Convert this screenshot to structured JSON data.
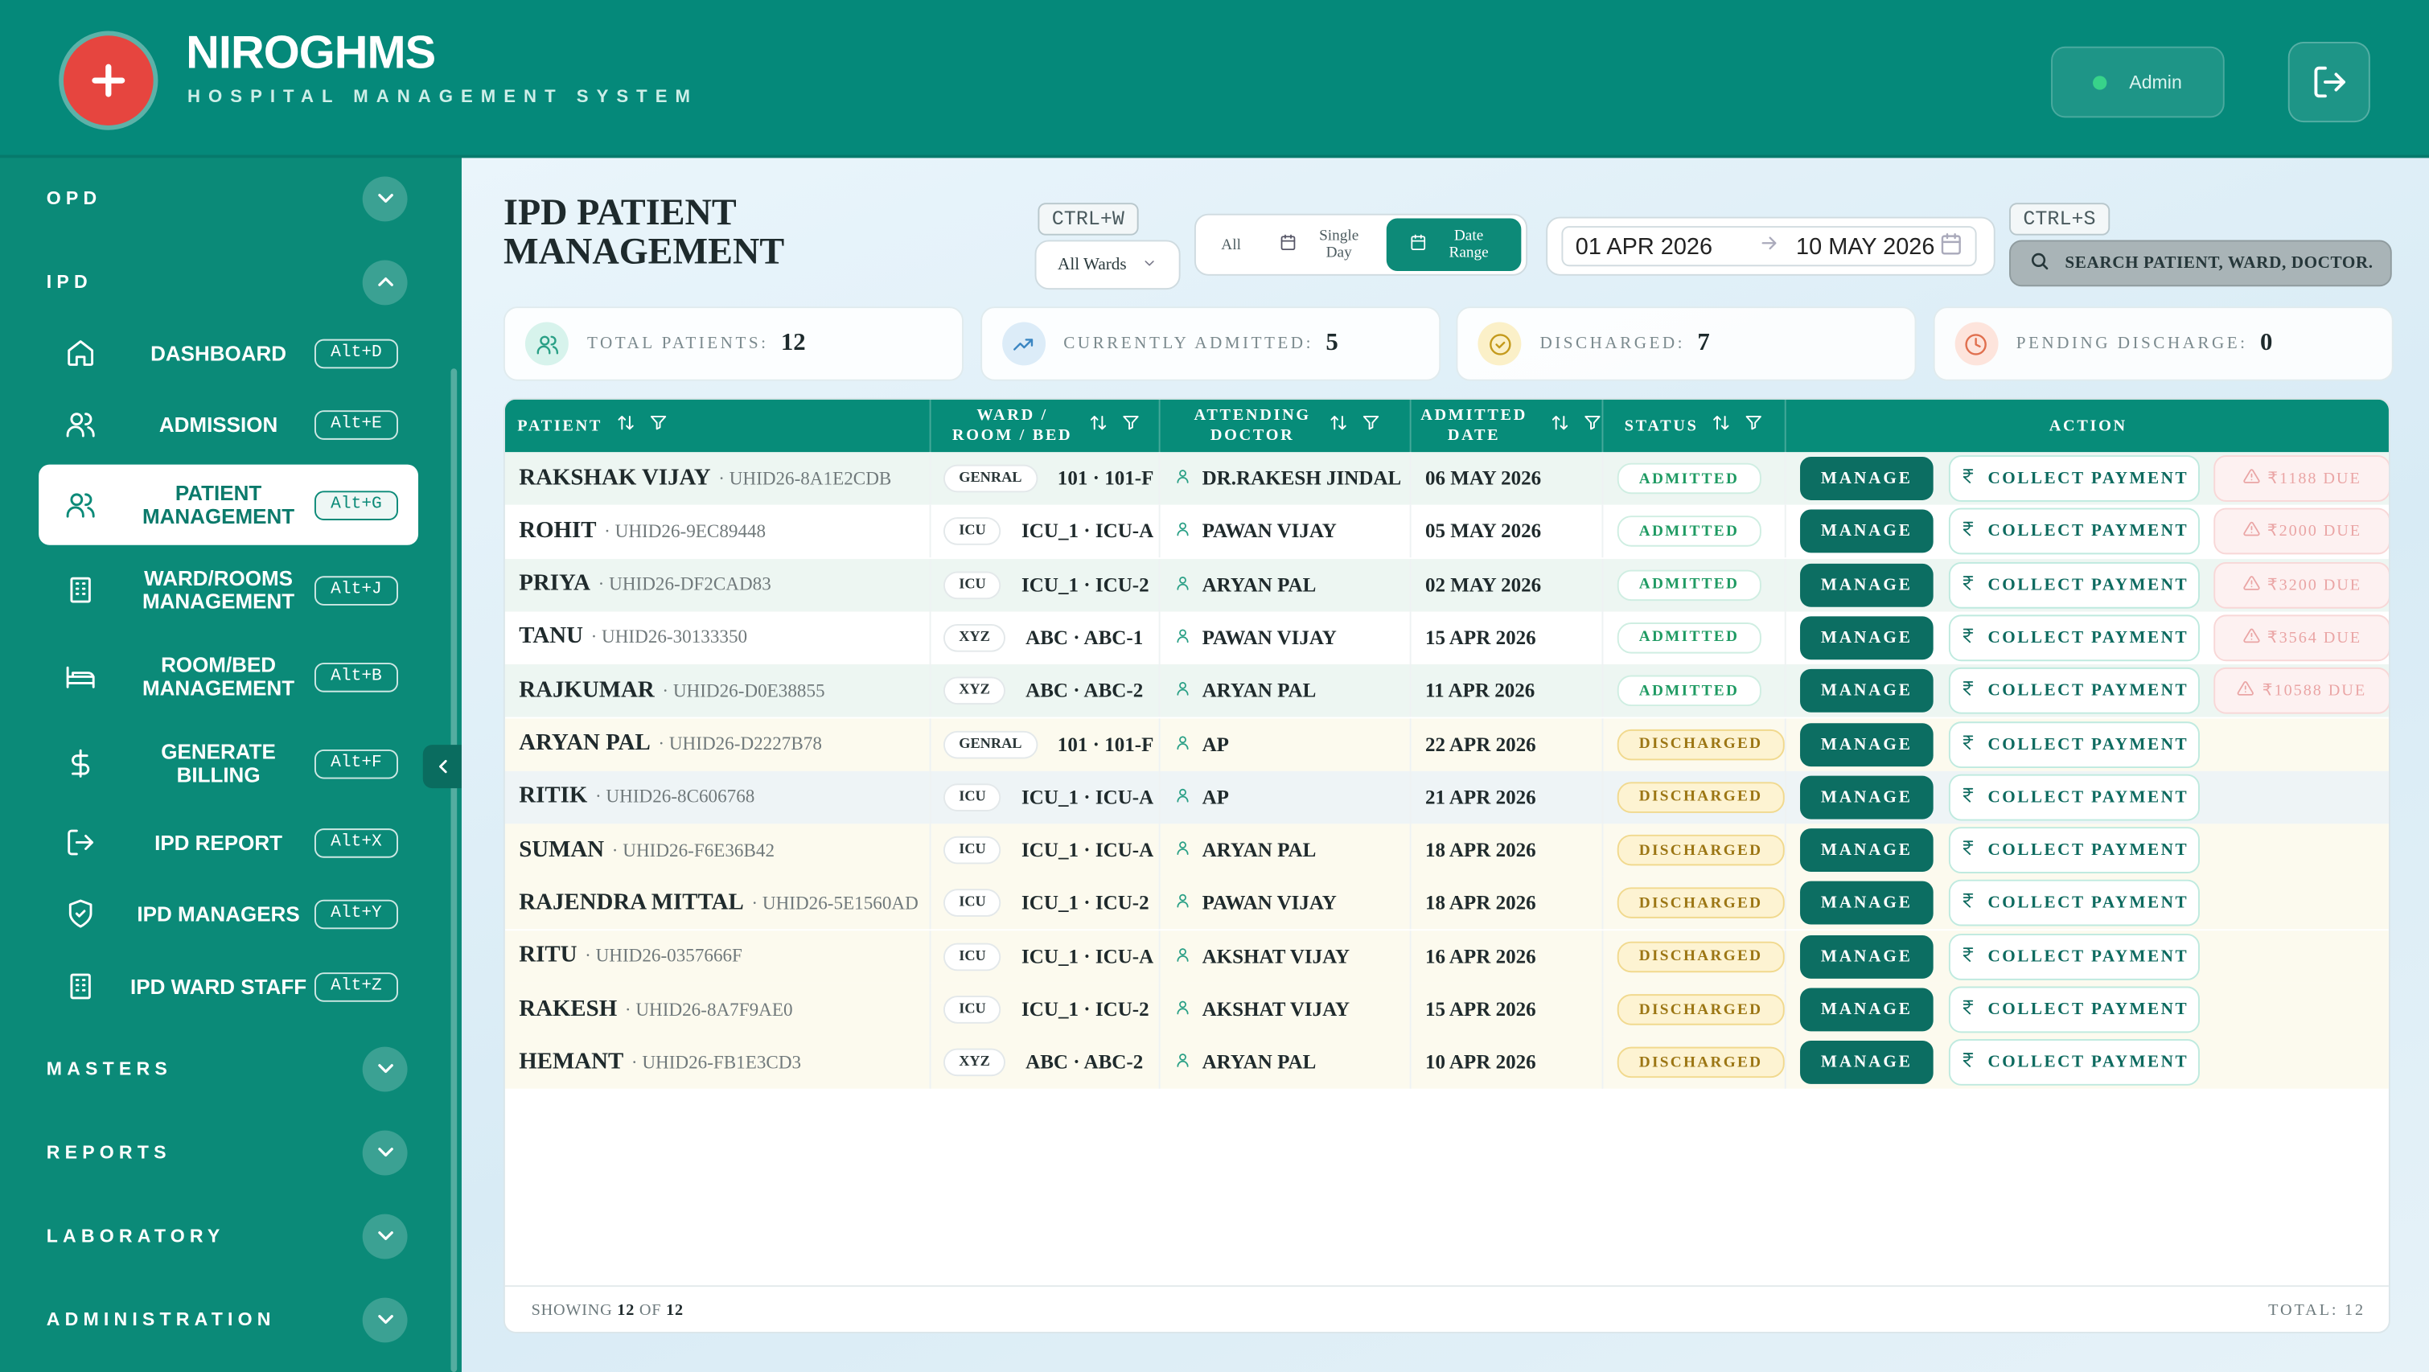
{
  "header": {
    "brand": "NIROGHMS",
    "tagline": "HOSPITAL MANAGEMENT SYSTEM",
    "user": "Admin"
  },
  "sidebar": {
    "sections": [
      {
        "label": "OPD"
      },
      {
        "label": "IPD",
        "expanded": true,
        "items": [
          {
            "label": "DASHBOARD",
            "shortcut": "Alt+D"
          },
          {
            "label": "ADMISSION",
            "shortcut": "Alt+E"
          },
          {
            "label": "PATIENT MANAGEMENT",
            "shortcut": "Alt+G",
            "selected": true
          },
          {
            "label": "WARD/ROOMS MANAGEMENT",
            "shortcut": "Alt+J"
          },
          {
            "label": "ROOM/BED MANAGEMENT",
            "shortcut": "Alt+B"
          },
          {
            "label": "GENERATE BILLING",
            "shortcut": "Alt+F"
          },
          {
            "label": "IPD REPORT",
            "shortcut": "Alt+X"
          },
          {
            "label": "IPD MANAGERS",
            "shortcut": "Alt+Y"
          },
          {
            "label": "IPD WARD STAFF",
            "shortcut": "Alt+Z"
          }
        ]
      },
      {
        "label": "MASTERS"
      },
      {
        "label": "REPORTS"
      },
      {
        "label": "LABORATORY"
      },
      {
        "label": "ADMINISTRATION"
      }
    ]
  },
  "page": {
    "title": "IPD PATIENT MANAGEMENT",
    "ward_shortcut": "CTRL+W",
    "ward_filter": "All Wards",
    "date_modes": [
      {
        "label": "All"
      },
      {
        "label": "Single Day"
      },
      {
        "label": "Date Range",
        "selected": true
      }
    ],
    "date_from": "01 APR 2026",
    "date_to": "10 MAY 2026",
    "search_shortcut": "CTRL+S",
    "search_placeholder": "SEARCH PATIENT, WARD, DOCTOR."
  },
  "stats": [
    {
      "label": "TOTAL PATIENTS:",
      "value": 12
    },
    {
      "label": "CURRENTLY ADMITTED:",
      "value": 5
    },
    {
      "label": "DISCHARGED:",
      "value": 7
    },
    {
      "label": "PENDING DISCHARGE:",
      "value": 0
    }
  ],
  "table": {
    "columns": [
      "PATIENT",
      "WARD / ROOM / BED",
      "ATTENDING DOCTOR",
      "ADMITTED DATE",
      "STATUS",
      "ACTION"
    ],
    "manage": "MANAGE",
    "collect": "COLLECT PAYMENT",
    "rows": [
      {
        "name": "RAKSHAK VIJAY",
        "uhid": "UHID26-8A1E2CDB",
        "ward": "GENRAL",
        "bed": "101 · 101-F",
        "doctor": "DR.RAKESH JINDAL",
        "date": "06 MAY 2026",
        "status": "ADMITTED",
        "due": "₹1188 DUE"
      },
      {
        "name": "ROHIT",
        "uhid": "UHID26-9EC89448",
        "ward": "ICU",
        "bed": "ICU_1 · ICU-A",
        "doctor": "PAWAN VIJAY",
        "date": "05 MAY 2026",
        "status": "ADMITTED",
        "due": "₹2000 DUE"
      },
      {
        "name": "PRIYA",
        "uhid": "UHID26-DF2CAD83",
        "ward": "ICU",
        "bed": "ICU_1 · ICU-2",
        "doctor": "ARYAN PAL",
        "date": "02 MAY 2026",
        "status": "ADMITTED",
        "due": "₹3200 DUE"
      },
      {
        "name": "TANU",
        "uhid": "UHID26-30133350",
        "ward": "XYZ",
        "bed": "ABC · ABC-1",
        "doctor": "PAWAN VIJAY",
        "date": "15 APR 2026",
        "status": "ADMITTED",
        "due": "₹3564 DUE"
      },
      {
        "name": "RAJKUMAR",
        "uhid": "UHID26-D0E38855",
        "ward": "XYZ",
        "bed": "ABC · ABC-2",
        "doctor": "ARYAN PAL",
        "date": "11 APR 2026",
        "status": "ADMITTED",
        "due": "₹10588 DUE"
      },
      {
        "name": "ARYAN PAL",
        "uhid": "UHID26-D2227B78",
        "ward": "GENRAL",
        "bed": "101 · 101-F",
        "doctor": "AP",
        "date": "22 APR 2026",
        "status": "DISCHARGED"
      },
      {
        "name": "RITIK",
        "uhid": "UHID26-8C606768",
        "ward": "ICU",
        "bed": "ICU_1 · ICU-A",
        "doctor": "AP",
        "date": "21 APR 2026",
        "status": "DISCHARGED"
      },
      {
        "name": "SUMAN",
        "uhid": "UHID26-F6E36B42",
        "ward": "ICU",
        "bed": "ICU_1 · ICU-A",
        "doctor": "ARYAN PAL",
        "date": "18 APR 2026",
        "status": "DISCHARGED"
      },
      {
        "name": "RAJENDRA MITTAL",
        "uhid": "UHID26-5E1560AD",
        "ward": "ICU",
        "bed": "ICU_1 · ICU-2",
        "doctor": "PAWAN VIJAY",
        "date": "18 APR 2026",
        "status": "DISCHARGED"
      },
      {
        "name": "RITU",
        "uhid": "UHID26-0357666F",
        "ward": "ICU",
        "bed": "ICU_1 · ICU-A",
        "doctor": "AKSHAT VIJAY",
        "date": "16 APR 2026",
        "status": "DISCHARGED"
      },
      {
        "name": "RAKESH",
        "uhid": "UHID26-8A7F9AE0",
        "ward": "ICU",
        "bed": "ICU_1 · ICU-2",
        "doctor": "AKSHAT VIJAY",
        "date": "15 APR 2026",
        "status": "DISCHARGED"
      },
      {
        "name": "HEMANT",
        "uhid": "UHID26-FB1E3CD3",
        "ward": "XYZ",
        "bed": "ABC · ABC-2",
        "doctor": "ARYAN PAL",
        "date": "10 APR 2026",
        "status": "DISCHARGED"
      }
    ]
  },
  "footer": {
    "showing": "SHOWING",
    "shown": 12,
    "of": "OF",
    "count": 12,
    "total_label": "TOTAL:",
    "total": 12
  }
}
